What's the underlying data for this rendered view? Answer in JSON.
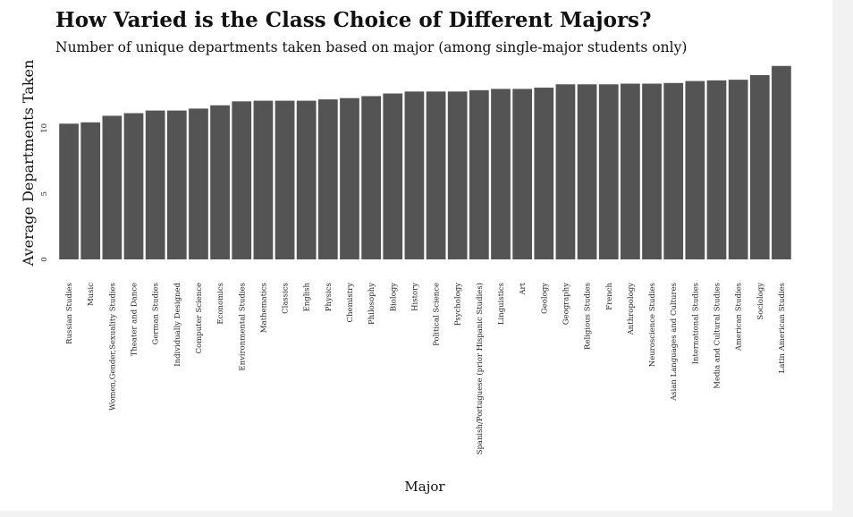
{
  "chart_data": {
    "type": "bar",
    "title": "How Varied is the Class Choice of Different Majors?",
    "subtitle": "Number of unique departments taken based on major (among single-major students only)",
    "xlabel": "Major",
    "ylabel": "Average Departments Taken",
    "ylim": [
      0,
      14.8
    ],
    "yticks": [
      "0",
      "5",
      "10"
    ],
    "ytick_values": [
      0,
      5,
      10
    ],
    "grid": false,
    "bar_color": "#545454",
    "categories": [
      "Russian Studies",
      "Music",
      "Women,Gender,Sexuality Studies",
      "Theater and Dance",
      "German Studies",
      "Individually Designed",
      "Computer Science",
      "Economics",
      "Environmental Studies",
      "Mathematics",
      "Classics",
      "English",
      "Physics",
      "Chemistry",
      "Philosophy",
      "Biology",
      "History",
      "Political Science",
      "Psychology",
      "Spanish/Portuguese (prior Hispanic Studies)",
      "Linguistics",
      "Art",
      "Geology",
      "Geography",
      "Religious Studies",
      "French",
      "Anthropology",
      "Neuroscience Studies",
      "Asian Languages and Cultures",
      "International Studies",
      "Media and Cultural Studies",
      "American Studies",
      "Sociology",
      "Latin American Studies"
    ],
    "values": [
      10.35,
      10.45,
      10.95,
      11.15,
      11.35,
      11.35,
      11.5,
      11.75,
      12.05,
      12.1,
      12.1,
      12.1,
      12.2,
      12.3,
      12.45,
      12.65,
      12.8,
      12.8,
      12.8,
      12.9,
      13.0,
      13.0,
      13.1,
      13.35,
      13.35,
      13.35,
      13.4,
      13.4,
      13.45,
      13.6,
      13.65,
      13.7,
      14.05,
      14.75
    ]
  }
}
